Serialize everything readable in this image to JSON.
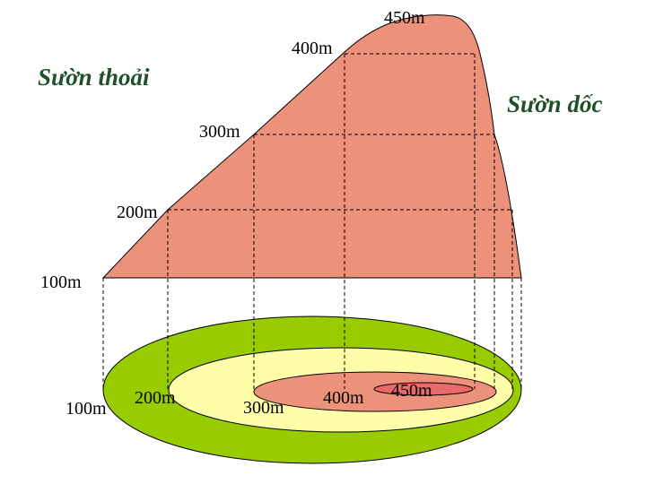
{
  "diagram": {
    "side_labels": {
      "gentle": "Sườn thoải",
      "steep": "Sườn dốc"
    },
    "profile_labels": [
      "100m",
      "200m",
      "300m",
      "400m",
      "450m"
    ],
    "contour_labels": [
      "100m",
      "200m",
      "300m",
      "400m",
      "450m"
    ],
    "colors": {
      "profile_fill": "#ec917a",
      "ring_100": "#99cc00",
      "ring_200": "#ffffaa",
      "ring_300": "#ec917a",
      "ring_400": "#e96a6a",
      "outline": "#000000"
    }
  }
}
